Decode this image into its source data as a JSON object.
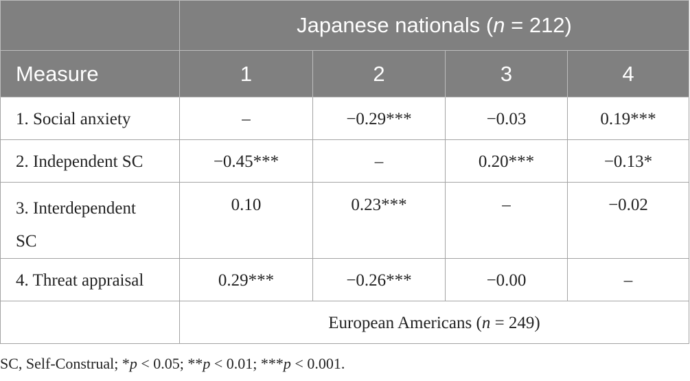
{
  "table": {
    "group_header": {
      "prefix": "Japanese nationals (",
      "n_symbol": "n",
      "suffix": " = 212)"
    },
    "column_headers": [
      "Measure",
      "1",
      "2",
      "3",
      "4"
    ],
    "rows": [
      {
        "label": "1. Social anxiety",
        "values": [
          "–",
          "−0.29***",
          "−0.03",
          "0.19***"
        ]
      },
      {
        "label": "2. Independent SC",
        "values": [
          "−0.45***",
          "–",
          "0.20***",
          "−0.13*"
        ]
      },
      {
        "label": "3. Interdependent SC",
        "values": [
          "0.10",
          "0.23***",
          "–",
          "−0.02"
        ]
      },
      {
        "label": "4. Threat appraisal",
        "values": [
          "0.29***",
          "−0.26***",
          "−0.00",
          "–"
        ]
      }
    ],
    "footer_group": {
      "prefix": "European Americans (",
      "n_symbol": "n",
      "suffix": " = 249)"
    }
  },
  "note": {
    "text_1": "SC, Self-Construal; *",
    "p1": "p",
    "text_2": " < 0.05; **",
    "p2": "p",
    "text_3": " < 0.01; ***",
    "p3": "p",
    "text_4": " < 0.001."
  }
}
